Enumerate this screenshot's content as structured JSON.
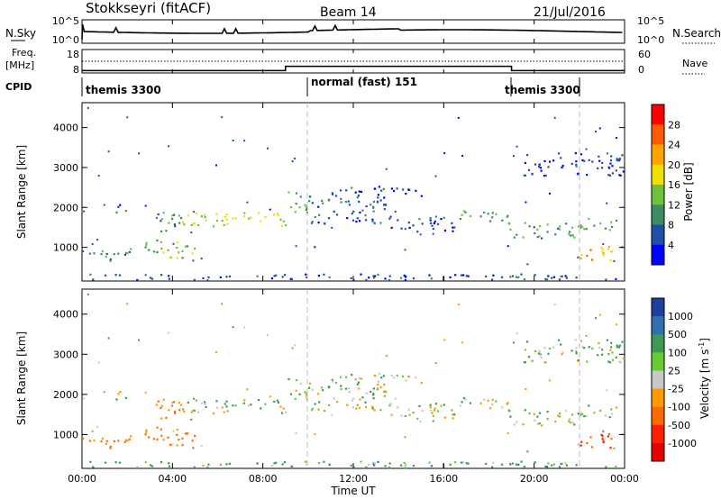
{
  "header": {
    "station": "Stokkseyri (fitACF)",
    "beam": "Beam 14",
    "date": "21/Jul/2016"
  },
  "noise_panel": {
    "left_label": "N.Sky",
    "right_label": "N.Search",
    "top_tick": "10^5",
    "bottom_tick": "10^0"
  },
  "freq_panel": {
    "left_label_1": "Freq.",
    "left_label_2": "[MHz]",
    "right_label": "Nave",
    "left_ticks": [
      "18",
      "8"
    ],
    "right_ticks": [
      "60",
      "0"
    ]
  },
  "cpid_panel": {
    "label": "CPID",
    "modes": [
      {
        "name": "themis 3300",
        "start_h": 0.0,
        "end_h": 9.8
      },
      {
        "name": "normal (fast) 151",
        "start_h": 9.8,
        "end_h": 18.8
      },
      {
        "name": "themis 3300",
        "start_h": 18.8,
        "end_h": 21.9
      }
    ],
    "change_hours": [
      9.8,
      21.9
    ]
  },
  "x_axis": {
    "label": "Time UT",
    "ticks": [
      "00:00",
      "04:00",
      "08:00",
      "12:00",
      "16:00",
      "20:00",
      "00:00"
    ],
    "range_h": [
      0,
      24
    ]
  },
  "power_panel": {
    "ylabel": "Slant Range [km]",
    "yticks": [
      "1000",
      "2000",
      "3000",
      "4000"
    ],
    "colorbar_label": "Power [dB]",
    "colorbar_ticks": [
      "4",
      "8",
      "12",
      "16",
      "20",
      "24",
      "28"
    ],
    "colors": [
      "#0000ff",
      "#1f4fa8",
      "#3e8c63",
      "#6fc23d",
      "#f0e000",
      "#ffa300",
      "#ff5a00",
      "#ff0000"
    ]
  },
  "velocity_panel": {
    "ylabel": "Slant Range [km]",
    "yticks": [
      "1000",
      "2000",
      "3000",
      "4000"
    ],
    "colorbar_label": "Velocity [m s",
    "colorbar_label_sup": "-1",
    "colorbar_label_end": "]",
    "colorbar_ticks": [
      "1000",
      "500",
      "100",
      "25",
      "-25",
      "-100",
      "-500",
      "-1000"
    ],
    "colors": [
      "#1f3f9f",
      "#2e6fb0",
      "#3c9a55",
      "#66cc33",
      "#c8c8c8",
      "#ff9b00",
      "#ff6a00",
      "#ff2000",
      "#e60000"
    ]
  },
  "chart_data": {
    "type": "heatmap",
    "x_range_hours": [
      0,
      24
    ],
    "y_range_km": [
      180,
      4600
    ],
    "scatter_bands": [
      {
        "t0": 0.0,
        "t1": 1.5,
        "r0": 650,
        "r1": 950,
        "power": 9,
        "velocity": -120
      },
      {
        "t0": 1.5,
        "t1": 2.6,
        "r0": 800,
        "r1": 1050,
        "power": 9,
        "velocity": -140
      },
      {
        "t0": 2.6,
        "t1": 3.2,
        "r0": 900,
        "r1": 1250,
        "power": 12,
        "velocity": -110
      },
      {
        "t0": 3.2,
        "t1": 4.3,
        "r0": 700,
        "r1": 1200,
        "power": 14,
        "velocity": -130
      },
      {
        "t0": 4.4,
        "t1": 5.0,
        "r0": 650,
        "r1": 1100,
        "power": 15,
        "velocity": -150
      },
      {
        "t0": 1.0,
        "t1": 2.0,
        "r0": 1900,
        "r1": 2100,
        "power": 6,
        "velocity": 0
      },
      {
        "t0": 3.2,
        "t1": 4.4,
        "r0": 1300,
        "r1": 1900,
        "power": 10,
        "velocity": -90
      },
      {
        "t0": 4.3,
        "t1": 9.0,
        "r0": 1550,
        "r1": 1900,
        "power": 16,
        "velocity": 5
      },
      {
        "t0": 9.0,
        "t1": 10.0,
        "r0": 1900,
        "r1": 2450,
        "power": 11,
        "velocity": 0
      },
      {
        "t0": 10.0,
        "t1": 13.5,
        "r0": 1600,
        "r1": 2300,
        "power": 7,
        "velocity": 0
      },
      {
        "t0": 10.5,
        "t1": 15.0,
        "r0": 2300,
        "r1": 2550,
        "power": 5,
        "velocity": 10
      },
      {
        "t0": 13.5,
        "t1": 16.5,
        "r0": 1400,
        "r1": 1800,
        "power": 6,
        "velocity": 0
      },
      {
        "t0": 16.5,
        "t1": 18.8,
        "r0": 1650,
        "r1": 1950,
        "power": 12,
        "velocity": 0
      },
      {
        "t0": 18.8,
        "t1": 22.0,
        "r0": 1250,
        "r1": 1650,
        "power": 11,
        "velocity": 0
      },
      {
        "t0": 22.0,
        "t1": 24.0,
        "r0": 1450,
        "r1": 1750,
        "power": 12,
        "velocity": 0
      },
      {
        "t0": 19.5,
        "t1": 24.0,
        "r0": 2800,
        "r1": 3400,
        "power": 5,
        "velocity": 30
      },
      {
        "t0": 22.0,
        "t1": 23.4,
        "r0": 650,
        "r1": 1100,
        "power": 22,
        "velocity": -500
      },
      {
        "t0": 0.0,
        "t1": 24.0,
        "r0": 200,
        "r1": 350,
        "power": 5,
        "velocity": 50
      }
    ],
    "noise_sky_level": 10000,
    "freq_mhz": [
      {
        "t0": 0.0,
        "t1": 9.0,
        "f": 9
      },
      {
        "t0": 9.0,
        "t1": 19.0,
        "f": 12
      },
      {
        "t0": 19.0,
        "t1": 24.0,
        "f": 9
      }
    ]
  }
}
